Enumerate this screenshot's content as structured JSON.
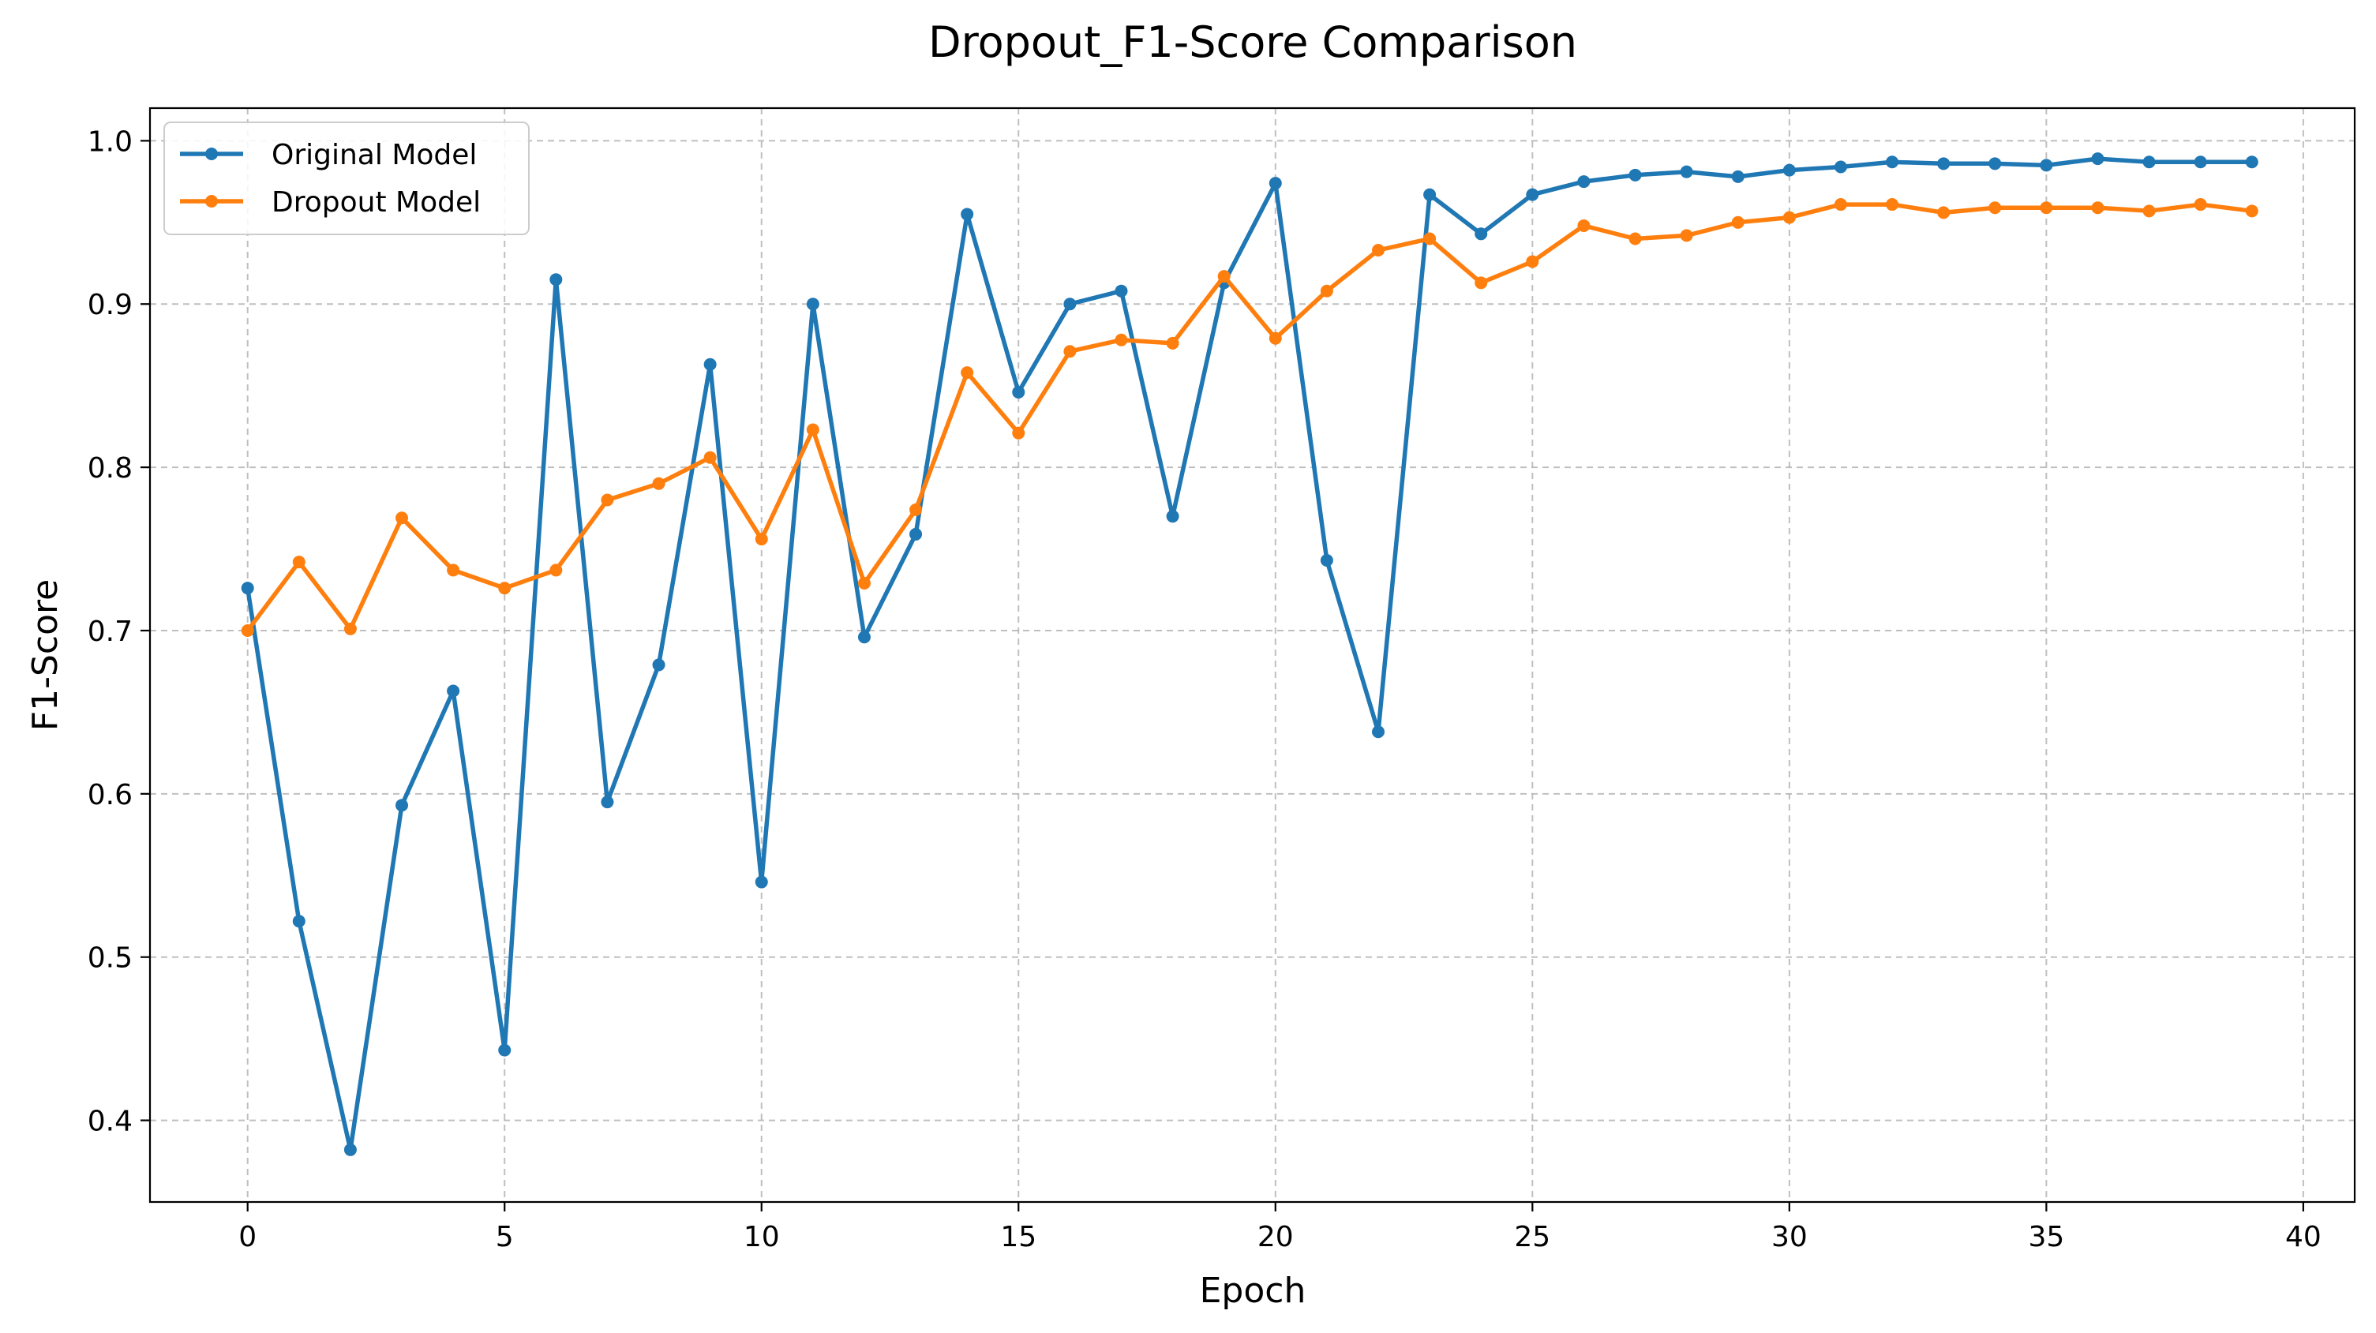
{
  "chart_data": {
    "type": "line",
    "title": "Dropout_F1-Score Comparison",
    "xlabel": "Epoch",
    "ylabel": "F1-Score",
    "xlim": [
      -1.9,
      41.0
    ],
    "ylim": [
      0.35,
      1.02
    ],
    "xticks": [
      0,
      5,
      10,
      15,
      20,
      25,
      30,
      35,
      40
    ],
    "yticks": [
      0.4,
      0.5,
      0.6,
      0.7,
      0.8,
      0.9,
      1.0
    ],
    "xtick_labels": [
      "0",
      "5",
      "10",
      "15",
      "20",
      "25",
      "30",
      "35",
      "40"
    ],
    "ytick_labels": [
      "0.4",
      "0.5",
      "0.6",
      "0.7",
      "0.8",
      "0.9",
      "1.0"
    ],
    "grid": true,
    "legend_position": "top-left",
    "x": [
      0,
      1,
      2,
      3,
      4,
      5,
      6,
      7,
      8,
      9,
      10,
      11,
      12,
      13,
      14,
      15,
      16,
      17,
      18,
      19,
      20,
      21,
      22,
      23,
      24,
      25,
      26,
      27,
      28,
      29,
      30,
      31,
      32,
      33,
      34,
      35,
      36,
      37,
      38,
      39
    ],
    "series": [
      {
        "name": "Original Model",
        "color": "#1f77b4",
        "values": [
          0.726,
          0.522,
          0.382,
          0.593,
          0.663,
          0.443,
          0.915,
          0.595,
          0.679,
          0.863,
          0.546,
          0.9,
          0.696,
          0.759,
          0.955,
          0.846,
          0.9,
          0.908,
          0.77,
          0.913,
          0.974,
          0.743,
          0.638,
          0.967,
          0.943,
          0.967,
          0.975,
          0.979,
          0.981,
          0.978,
          0.982,
          0.984,
          0.987,
          0.986,
          0.986,
          0.985,
          0.989,
          0.987,
          0.987,
          0.987
        ]
      },
      {
        "name": "Dropout Model",
        "color": "#ff7f0e",
        "values": [
          0.7,
          0.742,
          0.701,
          0.769,
          0.737,
          0.726,
          0.737,
          0.78,
          0.79,
          0.806,
          0.756,
          0.823,
          0.729,
          0.774,
          0.858,
          0.821,
          0.871,
          0.878,
          0.876,
          0.917,
          0.879,
          0.908,
          0.933,
          0.94,
          0.913,
          0.926,
          0.948,
          0.94,
          0.942,
          0.95,
          0.953,
          0.961,
          0.961,
          0.956,
          0.959,
          0.959,
          0.959,
          0.957,
          0.961,
          0.957
        ]
      }
    ]
  }
}
